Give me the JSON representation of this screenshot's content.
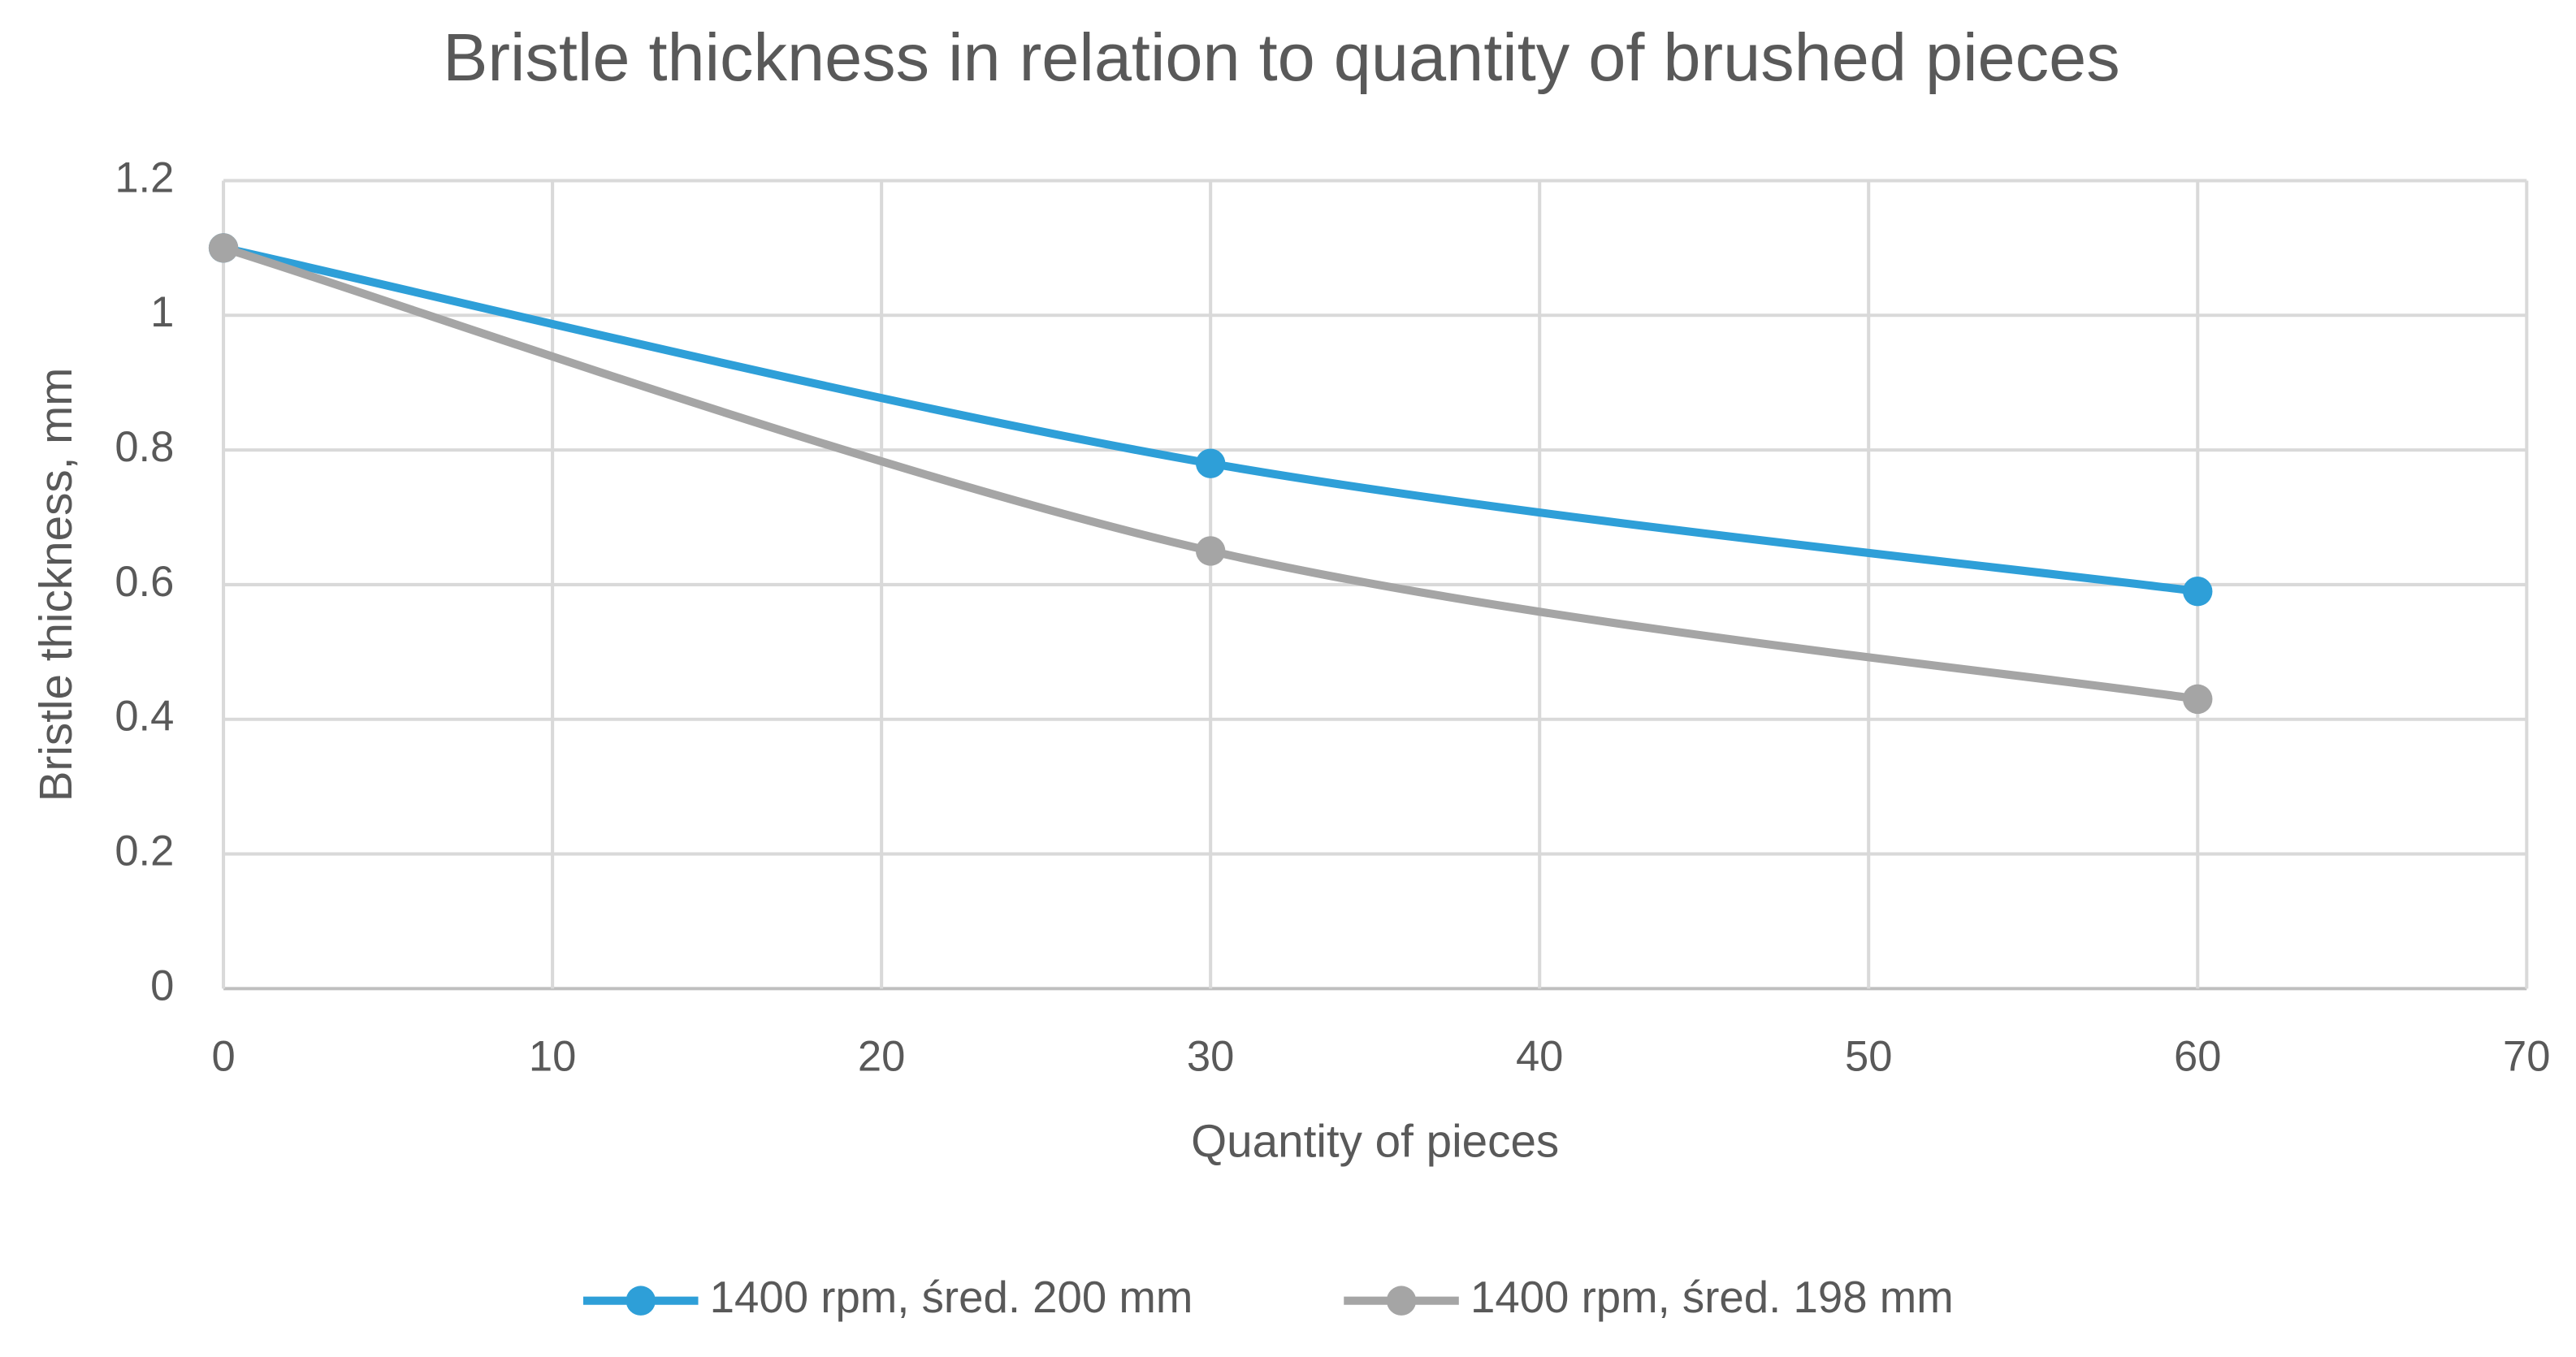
{
  "chart_data": {
    "type": "line",
    "title": "Bristle thickness in relation to quantity of brushed pieces",
    "x_label": "Quantity of pieces",
    "y_label": "Bristle thickness, mm",
    "x": [
      0,
      30,
      60
    ],
    "series": [
      {
        "name": "1400 rpm, śred. 200 mm",
        "color": "#2e9fd8",
        "values": [
          1.1,
          0.78,
          0.59
        ]
      },
      {
        "name": "1400 rpm, śred. 198 mm",
        "color": "#a5a5a5",
        "values": [
          1.1,
          0.65,
          0.43
        ]
      }
    ],
    "xlim": [
      0,
      70
    ],
    "xticks": [
      0,
      10,
      20,
      30,
      40,
      50,
      60,
      70
    ],
    "ylim": [
      0,
      1.2
    ],
    "yticks": [
      0,
      0.2,
      0.4,
      0.6,
      0.8,
      1,
      1.2
    ],
    "grid": true,
    "smooth": true,
    "legend": "bottom"
  }
}
